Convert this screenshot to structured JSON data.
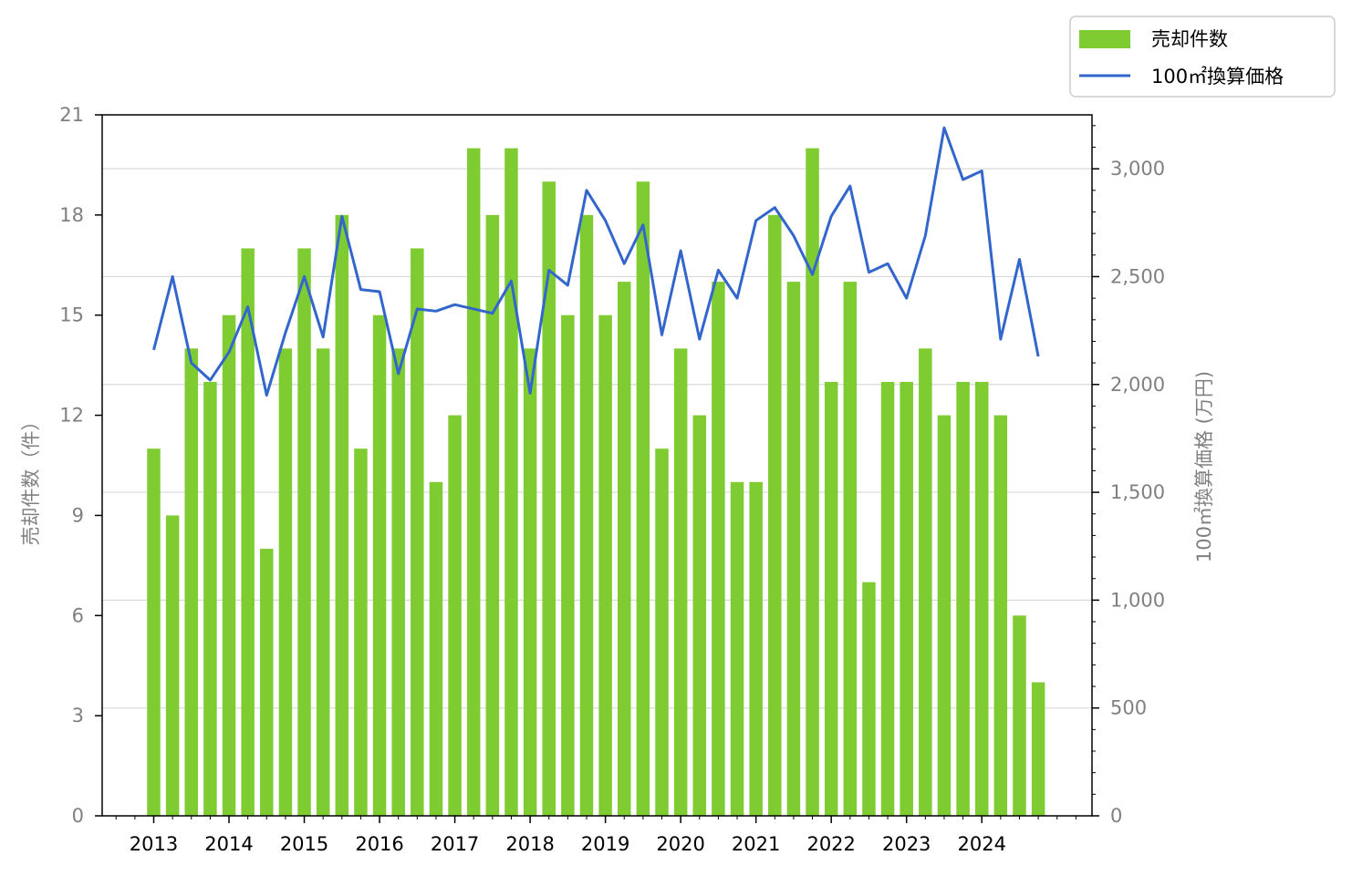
{
  "chart_data": {
    "type": "bar+line",
    "x_tick_labels": [
      "2013",
      "2014",
      "2015",
      "2016",
      "2017",
      "2018",
      "2019",
      "2020",
      "2021",
      "2022",
      "2023",
      "2024"
    ],
    "ylabel_left": "売却件数（件）",
    "ylabel_right": "100㎡換算価格 (万円)",
    "ylim_left": [
      0,
      21
    ],
    "yticks_left": [
      0,
      3,
      6,
      9,
      12,
      15,
      18,
      21
    ],
    "ylim_right": [
      0,
      3250
    ],
    "yticks_right": [
      0,
      500,
      1000,
      1500,
      2000,
      2500,
      3000
    ],
    "yticks_right_labels": [
      "0",
      "500",
      "1,000",
      "1,500",
      "2,000",
      "2,500",
      "3,000"
    ],
    "grid": "horizontal, right axis",
    "legend_position": "top-right, outside",
    "colors": {
      "bars": "#7fcb32",
      "line": "#3366cc"
    },
    "series": [
      {
        "name": "売却件数",
        "type": "bar",
        "axis": "left",
        "values": [
          11,
          9,
          14,
          13,
          15,
          17,
          8,
          14,
          17,
          14,
          18,
          11,
          15,
          14,
          17,
          10,
          12,
          20,
          18,
          20,
          14,
          19,
          15,
          18,
          15,
          16,
          19,
          11,
          14,
          12,
          16,
          10,
          10,
          18,
          16,
          20,
          13,
          16,
          7,
          13,
          13,
          14,
          12,
          13,
          13,
          12,
          6,
          4
        ]
      },
      {
        "name": "100㎡換算価格",
        "type": "line",
        "axis": "right",
        "values": [
          2160,
          2500,
          2100,
          2020,
          2150,
          2360,
          1950,
          2240,
          2500,
          2220,
          2780,
          2440,
          2430,
          2050,
          2350,
          2340,
          2370,
          2350,
          2330,
          2480,
          1960,
          2530,
          2460,
          2900,
          2760,
          2560,
          2740,
          2230,
          2620,
          2210,
          2530,
          2400,
          2760,
          2820,
          2690,
          2510,
          2780,
          2920,
          2520,
          2560,
          2400,
          2690,
          3190,
          2950,
          2990,
          2210,
          2580,
          2130
        ]
      }
    ]
  }
}
